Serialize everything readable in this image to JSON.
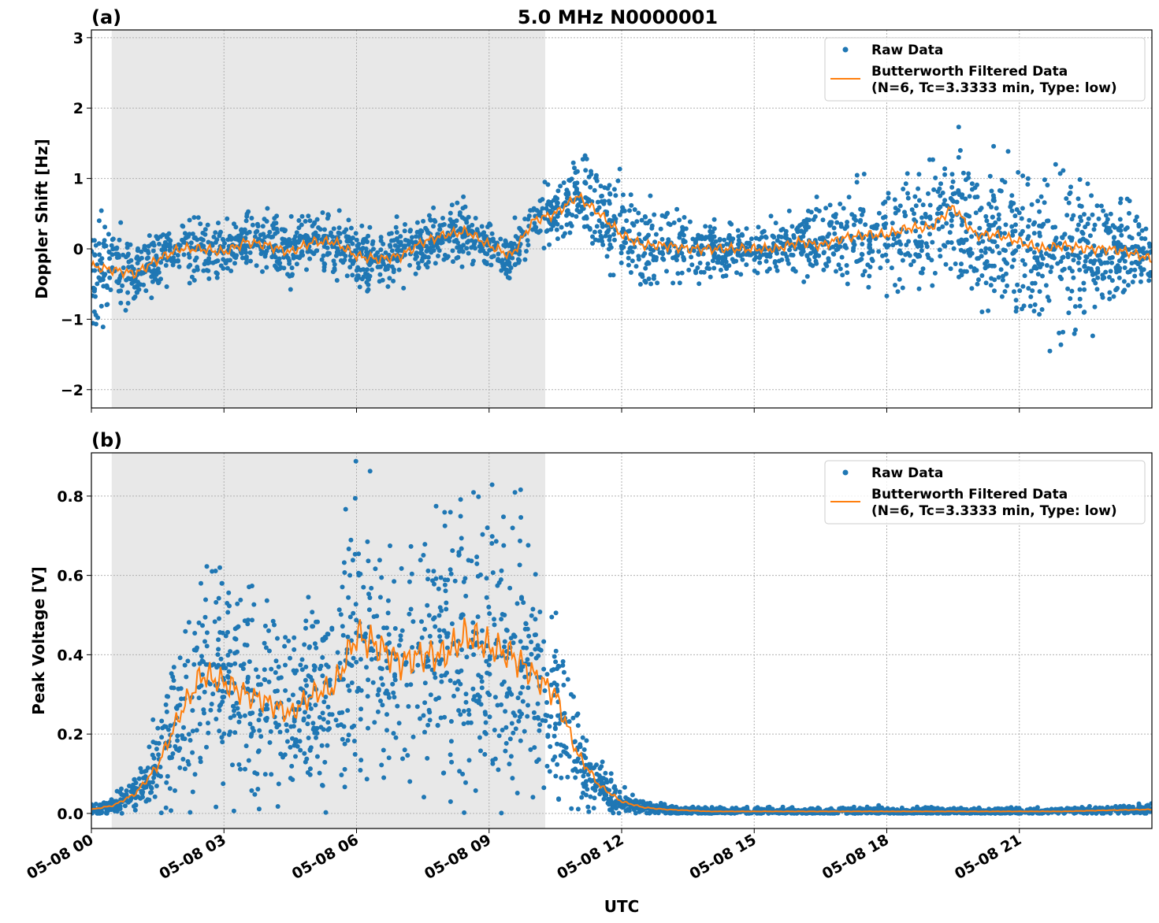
{
  "title": "5.0 MHz N0000001",
  "colors": {
    "raw": "#1f77b4",
    "filtered": "#ff7f0e",
    "shade": "#e8e8e8",
    "grid": "#b0b0b0"
  },
  "chart_data": [
    {
      "type": "scatter",
      "panel_label": "(a)",
      "ylabel": "Doppler Shift [Hz]",
      "xlabel": "",
      "xlim_hours": [
        0,
        24
      ],
      "ylim": [
        -2.26,
        3.11
      ],
      "yticks": [
        -2,
        -1,
        0,
        1,
        2,
        3
      ],
      "ytick_labels": [
        "−2",
        "−1",
        "0",
        "1",
        "2",
        "3"
      ],
      "xtick_labels": [
        "05-08 00",
        "05-08 03",
        "05-08 06",
        "05-08 09",
        "05-08 12",
        "05-08 15",
        "05-08 18",
        "05-08 21"
      ],
      "xticks_hours": [
        0,
        3,
        6,
        9,
        12,
        15,
        18,
        21
      ],
      "grid": true,
      "shaded_span_hours": [
        0.46,
        10.27
      ],
      "legend": {
        "placement": "upper-right",
        "entries": [
          "Raw Data",
          "Butterworth Filtered Data",
          "(N=6, Tc=3.3333 min, Type: low)"
        ]
      },
      "filtered": {
        "name": "Butterworth Filtered Data (N=6, Tc=3.3333 min, Type: low)",
        "x_hours": [
          0,
          0.5,
          1,
          1.5,
          2,
          2.5,
          3,
          3.5,
          4,
          4.5,
          5,
          5.5,
          6,
          6.5,
          7,
          7.5,
          8,
          8.5,
          9,
          9.5,
          10,
          10.5,
          11,
          11.5,
          12,
          12.5,
          13,
          13.5,
          14,
          14.5,
          15,
          15.5,
          16,
          16.5,
          17,
          17.5,
          18,
          18.5,
          19,
          19.5,
          20,
          20.5,
          21,
          21.5,
          22,
          22.5,
          23,
          23.5,
          24
        ],
        "y": [
          -0.25,
          -0.3,
          -0.35,
          -0.15,
          0,
          0.0,
          -0.05,
          0.1,
          0.05,
          -0.05,
          0.1,
          0.1,
          -0.1,
          -0.15,
          -0.1,
          0.1,
          0.2,
          0.25,
          0.05,
          -0.1,
          0.4,
          0.5,
          0.75,
          0.5,
          0.2,
          0.05,
          0.05,
          0.0,
          0.0,
          0.0,
          0.0,
          0.0,
          0.1,
          0.05,
          0.15,
          0.2,
          0.2,
          0.3,
          0.3,
          0.6,
          0.2,
          0.2,
          0.1,
          0.0,
          0.05,
          0.0,
          0.0,
          -0.05,
          -0.15
        ]
      },
      "raw": {
        "name": "Raw Data",
        "spread_hours": [
          0,
          1,
          10,
          12,
          15,
          22,
          24
        ],
        "spread_hz": [
          0.55,
          0.3,
          0.25,
          0.45,
          0.2,
          0.85,
          0.3
        ]
      }
    },
    {
      "type": "scatter",
      "panel_label": "(b)",
      "ylabel": "Peak Voltage [V]",
      "xlabel": "UTC",
      "xlim_hours": [
        0,
        24
      ],
      "ylim": [
        -0.038,
        0.909
      ],
      "yticks": [
        0,
        0.2,
        0.4,
        0.6,
        0.8
      ],
      "ytick_labels": [
        "0.0",
        "0.2",
        "0.4",
        "0.6",
        "0.8"
      ],
      "xtick_labels": [
        "05-08 00",
        "05-08 03",
        "05-08 06",
        "05-08 09",
        "05-08 12",
        "05-08 15",
        "05-08 18",
        "05-08 21"
      ],
      "xticks_hours": [
        0,
        3,
        6,
        9,
        12,
        15,
        18,
        21
      ],
      "grid": true,
      "shaded_span_hours": [
        0.46,
        10.27
      ],
      "legend": {
        "placement": "upper-right",
        "entries": [
          "Raw Data",
          "Butterworth Filtered Data",
          "(N=6, Tc=3.3333 min, Type: low)"
        ]
      },
      "filtered": {
        "name": "Butterworth Filtered Data (N=6, Tc=3.3333 min, Type: low)",
        "x_hours": [
          0,
          0.5,
          1,
          1.5,
          2,
          2.5,
          3,
          3.5,
          4,
          4.5,
          5,
          5.5,
          6,
          6.5,
          7,
          7.5,
          8,
          8.5,
          9,
          9.5,
          10,
          10.5,
          11,
          11.5,
          12,
          12.5,
          13,
          14,
          15,
          16,
          17,
          18,
          19,
          20,
          21,
          22,
          23,
          24
        ],
        "y": [
          0.01,
          0.02,
          0.05,
          0.12,
          0.25,
          0.35,
          0.33,
          0.3,
          0.28,
          0.25,
          0.3,
          0.32,
          0.45,
          0.42,
          0.38,
          0.4,
          0.4,
          0.45,
          0.42,
          0.4,
          0.35,
          0.3,
          0.15,
          0.07,
          0.03,
          0.015,
          0.01,
          0.005,
          0.005,
          0.005,
          0.005,
          0.005,
          0.005,
          0.005,
          0.005,
          0.005,
          0.008,
          0.01
        ]
      },
      "raw": {
        "name": "Raw Data",
        "relative_spread": 0.55
      }
    }
  ]
}
